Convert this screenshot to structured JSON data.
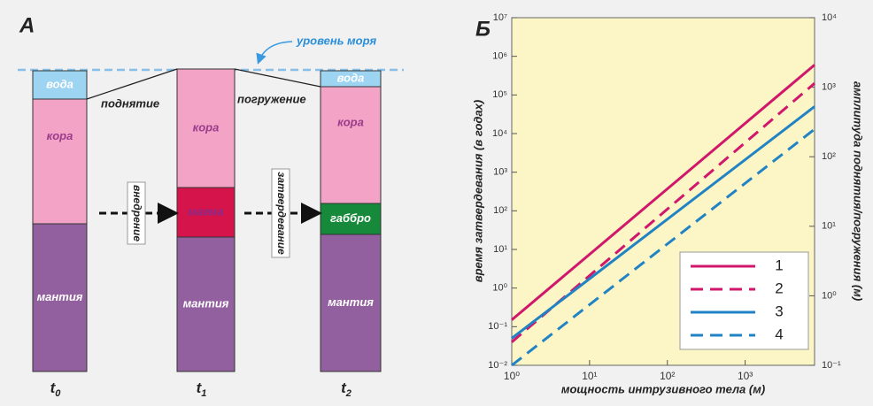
{
  "panel_a": {
    "label": "А",
    "sea_level": "уровень моря",
    "uplift": "поднятие",
    "subsidence": "погружение",
    "intrusion": "внедрение",
    "solidification": "затвердевание",
    "columns": [
      {
        "time": {
          "symbol": "t",
          "index": "0"
        },
        "layers": [
          "вода",
          "кора",
          "мантия"
        ]
      },
      {
        "time": {
          "symbol": "t",
          "index": "1"
        },
        "layers": [
          "кора",
          "магма",
          "мантия"
        ]
      },
      {
        "time": {
          "symbol": "t",
          "index": "2"
        },
        "layers": [
          "вода",
          "кора",
          "габбро",
          "мантия"
        ]
      }
    ]
  },
  "chart_data": {
    "type": "line",
    "panel_label": "Б",
    "xlabel": "мощность интрузивного тела (м)",
    "ylabel": "время затвердевания (в годах)",
    "y2label": "амплитуда поднятия/погружения (м)",
    "log_x": true,
    "log_y": true,
    "grid": false,
    "legend": "lower right",
    "x": [
      1,
      7800
    ],
    "xlim": [
      1,
      7800
    ],
    "xticks": [
      {
        "value": 1,
        "label": "10⁰"
      },
      {
        "value": 10,
        "label": "10¹"
      },
      {
        "value": 100,
        "label": "10²"
      },
      {
        "value": 1000,
        "label": "10³"
      }
    ],
    "ylim": [
      0.01,
      10000000
    ],
    "yticks": [
      {
        "value": 0.01,
        "label": "10⁻²"
      },
      {
        "value": 0.1,
        "label": "10⁻¹"
      },
      {
        "value": 1,
        "label": "10⁰"
      },
      {
        "value": 10,
        "label": "10¹"
      },
      {
        "value": 100,
        "label": "10²"
      },
      {
        "value": 1000,
        "label": "10³"
      },
      {
        "value": 10000,
        "label": "10⁴"
      },
      {
        "value": 100000,
        "label": "10⁵"
      },
      {
        "value": 1000000,
        "label": "10⁶"
      },
      {
        "value": 10000000,
        "label": "10⁷"
      }
    ],
    "y2lim": [
      0.1,
      10000
    ],
    "y2ticks": [
      {
        "value": 0.1,
        "label": "10⁻¹"
      },
      {
        "value": 1,
        "label": "10⁰"
      },
      {
        "value": 10,
        "label": "10¹"
      },
      {
        "value": 100,
        "label": "10²"
      },
      {
        "value": 1000,
        "label": "10³"
      },
      {
        "value": 10000,
        "label": "10⁴"
      }
    ],
    "series": [
      {
        "name": "1",
        "color": "#d1176b",
        "dashed": false,
        "values": [
          0.15,
          600000
        ]
      },
      {
        "name": "2",
        "color": "#d1176b",
        "dashed": true,
        "values": [
          0.04,
          200000
        ]
      },
      {
        "name": "3",
        "color": "#2283c4",
        "dashed": false,
        "values": [
          0.05,
          50000
        ]
      },
      {
        "name": "4",
        "color": "#2283c4",
        "dashed": true,
        "values": [
          0.01,
          13000
        ]
      }
    ]
  }
}
